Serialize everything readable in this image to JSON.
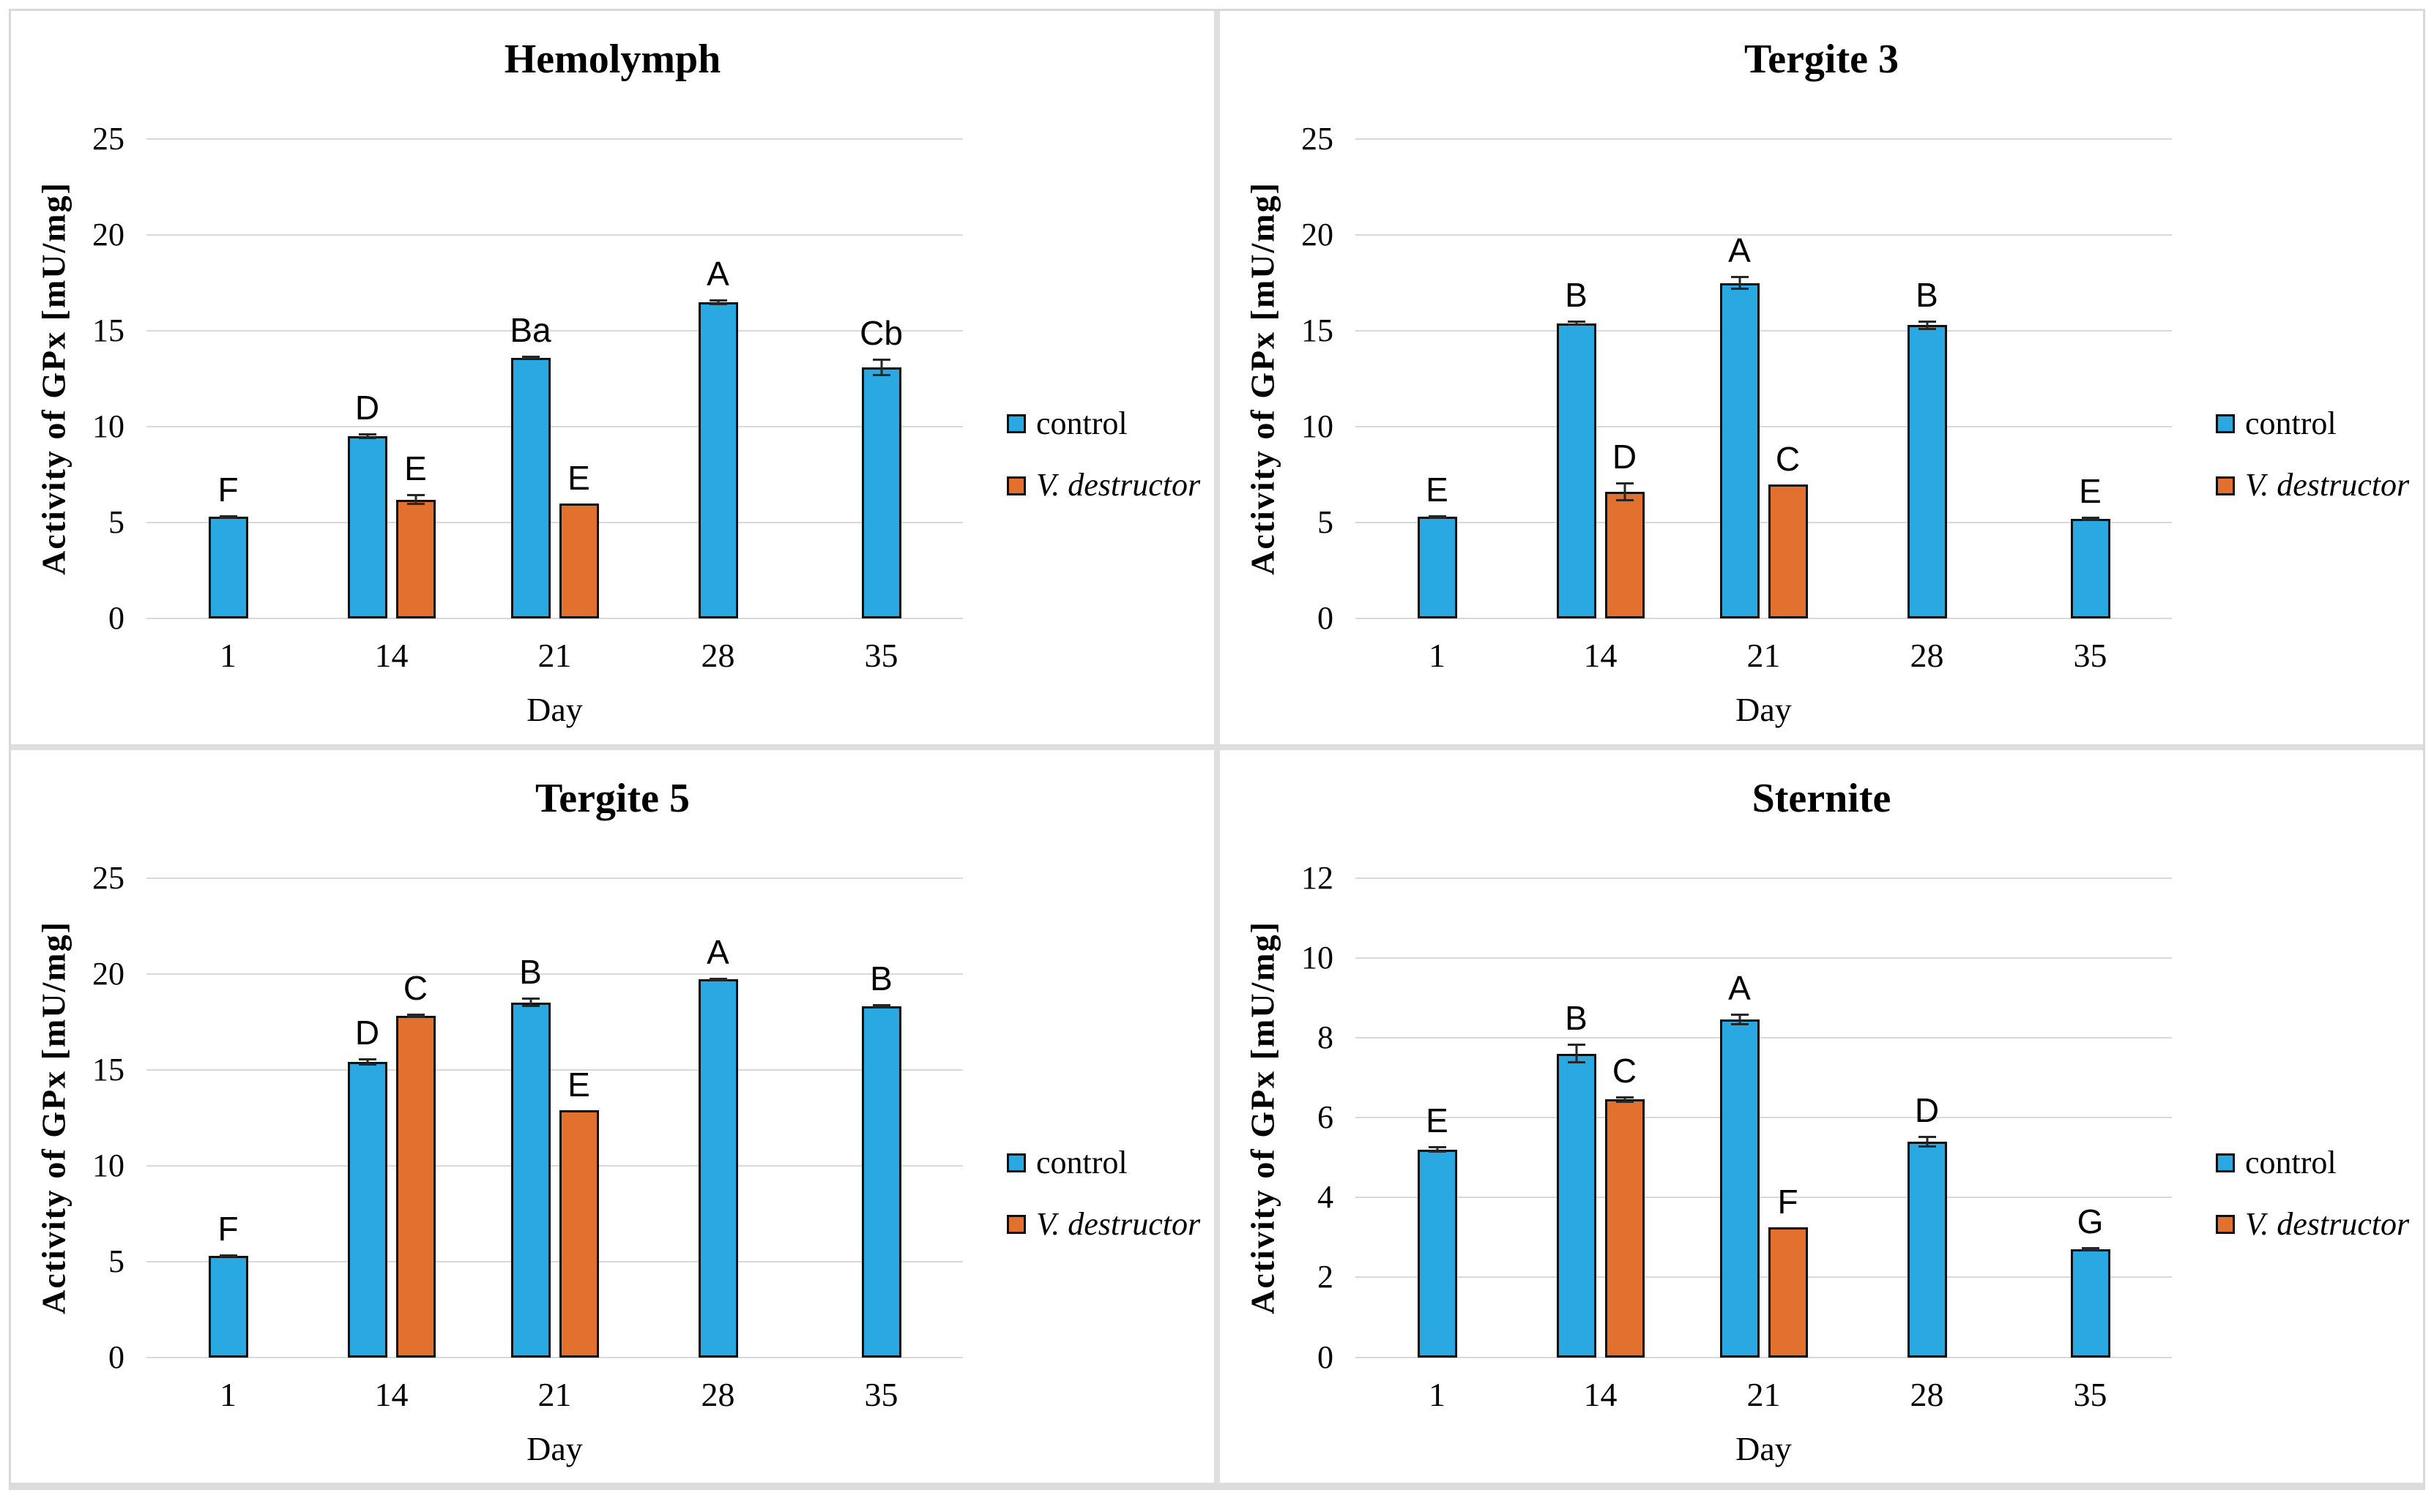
{
  "figure": {
    "colors": {
      "control": "#29A8E2",
      "varroa": "#E2702E",
      "bar_border": "#101010",
      "gridline": "#d9d9d9",
      "error_bar": "#262626",
      "frame": "#d9d9d9"
    }
  },
  "chart_data": [
    {
      "type": "bar",
      "title": "Hemolymph",
      "xlabel": "Day",
      "ylabel": "Activity of GPx [mU/mg]",
      "categories": [
        "1",
        "14",
        "21",
        "28",
        "35"
      ],
      "ylim": [
        0,
        25
      ],
      "ytick_step": 5,
      "grid": true,
      "legend_position": "right",
      "series": [
        {
          "name": "control",
          "color_key": "control",
          "values": [
            5.3,
            9.5,
            13.6,
            16.5,
            13.1
          ],
          "errors": [
            0.1,
            0.15,
            0.1,
            0.15,
            0.45
          ],
          "labels": [
            "F",
            "D",
            "Ba",
            "A",
            "Cb"
          ]
        },
        {
          "name": "V. destructor",
          "color_key": "varroa",
          "values": [
            null,
            6.2,
            6.0,
            null,
            null
          ],
          "errors": [
            null,
            0.3,
            0,
            null,
            null
          ],
          "labels": [
            null,
            "E",
            "E",
            null,
            null
          ]
        }
      ]
    },
    {
      "type": "bar",
      "title": "Tergite 3",
      "xlabel": "Day",
      "ylabel": "Activity of GPx [mU/mg]",
      "categories": [
        "1",
        "14",
        "21",
        "28",
        "35"
      ],
      "ylim": [
        0,
        25
      ],
      "ytick_step": 5,
      "grid": true,
      "legend_position": "right",
      "series": [
        {
          "name": "control",
          "color_key": "control",
          "values": [
            5.3,
            15.4,
            17.5,
            15.3,
            5.2
          ],
          "errors": [
            0.1,
            0.15,
            0.35,
            0.25,
            0.12
          ],
          "labels": [
            "E",
            "B",
            "A",
            "B",
            "E"
          ]
        },
        {
          "name": "V. destructor",
          "color_key": "varroa",
          "values": [
            null,
            6.6,
            7.0,
            null,
            null
          ],
          "errors": [
            null,
            0.5,
            0,
            null,
            null
          ],
          "labels": [
            null,
            "D",
            "C",
            null,
            null
          ]
        }
      ]
    },
    {
      "type": "bar",
      "title": "Tergite 5",
      "xlabel": "Day",
      "ylabel": "Activity of GPx [mU/mg]",
      "categories": [
        "1",
        "14",
        "21",
        "28",
        "35"
      ],
      "ylim": [
        0,
        25
      ],
      "ytick_step": 5,
      "grid": true,
      "legend_position": "right",
      "series": [
        {
          "name": "control",
          "color_key": "control",
          "values": [
            5.3,
            15.4,
            18.5,
            19.7,
            18.3
          ],
          "errors": [
            0.08,
            0.18,
            0.25,
            0.1,
            0.1
          ],
          "labels": [
            "F",
            "D",
            "B",
            "A",
            "B"
          ]
        },
        {
          "name": "V. destructor",
          "color_key": "varroa",
          "values": [
            null,
            17.8,
            12.9,
            null,
            null
          ],
          "errors": [
            null,
            0.12,
            0,
            null,
            null
          ],
          "labels": [
            null,
            "C",
            "E",
            null,
            null
          ]
        }
      ]
    },
    {
      "type": "bar",
      "title": "Sternite",
      "xlabel": "Day",
      "ylabel": "Activity of GPx [mU/mg]",
      "categories": [
        "1",
        "14",
        "21",
        "28",
        "35"
      ],
      "ylim": [
        0,
        12
      ],
      "ytick_step": 2,
      "grid": true,
      "legend_position": "right",
      "series": [
        {
          "name": "control",
          "color_key": "control",
          "values": [
            5.2,
            7.6,
            8.45,
            5.4,
            2.7
          ],
          "errors": [
            0.08,
            0.25,
            0.15,
            0.15,
            0.06
          ],
          "labels": [
            "E",
            "B",
            "A",
            "D",
            "G"
          ]
        },
        {
          "name": "V. destructor",
          "color_key": "varroa",
          "values": [
            null,
            6.45,
            3.25,
            null,
            null
          ],
          "errors": [
            null,
            0.08,
            0,
            null,
            null
          ],
          "labels": [
            null,
            "C",
            "F",
            null,
            null
          ]
        }
      ]
    }
  ]
}
